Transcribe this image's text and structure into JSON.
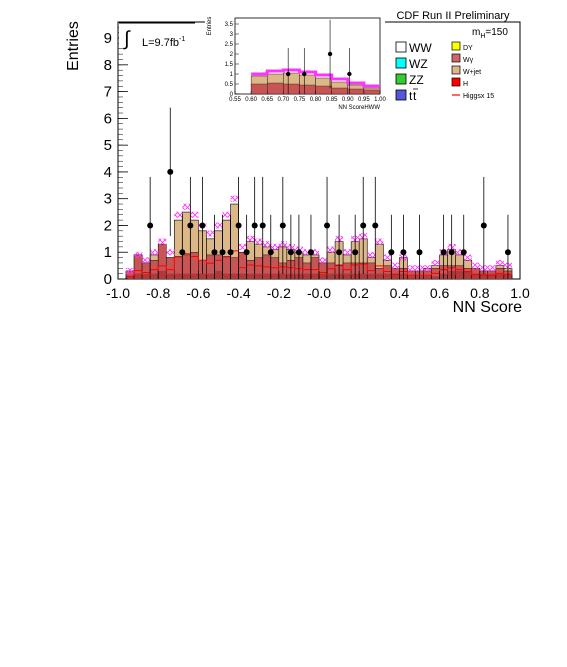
{
  "header": {
    "title": "CDF Run II Preliminary",
    "mass_label_main": "m",
    "mass_label_sub": "H",
    "mass_label_value": "=150",
    "lumi_label": "L=9.7fb",
    "lumi_exp": "-1"
  },
  "legend": {
    "left": [
      {
        "label": "WW",
        "color": "#ffffff"
      },
      {
        "label": "WZ",
        "color": "#00ffff"
      },
      {
        "label": "ZZ",
        "color": "#33cc33"
      },
      {
        "label": "t",
        "label_bar": "t",
        "color": "#5555dd"
      }
    ],
    "right": [
      {
        "label": "DY",
        "color": "#ffff00"
      },
      {
        "label": "Wγ",
        "color": "#d26666"
      },
      {
        "label": "W+jet",
        "color": "#dcb889"
      },
      {
        "label": "H",
        "color": "#ff0000"
      },
      {
        "label": "Higgsx 15",
        "color": "#ff0000"
      }
    ]
  },
  "chart_data": [
    {
      "type": "bar",
      "name": "main",
      "xlabel": "NN Score",
      "ylabel": "Entries",
      "xlim": [
        -1.0,
        1.0
      ],
      "ylim": [
        0,
        9.6
      ],
      "xticks": [
        "-1.0",
        "-0.8",
        "-0.6",
        "-0.4",
        "-0.2",
        "-0.0",
        "0.2",
        "0.4",
        "0.6",
        "0.8",
        "1.0"
      ],
      "yticks": [
        "0",
        "1",
        "2",
        "3",
        "4",
        "5",
        "6",
        "7",
        "8",
        "9"
      ],
      "bin_edges": [
        -0.96,
        -0.92,
        -0.88,
        -0.84,
        -0.8,
        -0.76,
        -0.72,
        -0.68,
        -0.64,
        -0.6,
        -0.56,
        -0.52,
        -0.48,
        -0.44,
        -0.4,
        -0.36,
        -0.32,
        -0.28,
        -0.24,
        -0.2,
        -0.16,
        -0.12,
        -0.08,
        -0.04,
        0.0,
        0.04,
        0.08,
        0.12,
        0.16,
        0.2,
        0.24,
        0.28,
        0.32,
        0.36,
        0.4,
        0.44,
        0.48,
        0.52,
        0.56,
        0.6,
        0.64,
        0.68,
        0.72,
        0.76,
        0.8,
        0.84,
        0.88,
        0.92,
        0.96
      ],
      "background_wjet_total": [
        0.3,
        0.9,
        0.6,
        0.9,
        1.3,
        0.8,
        2.2,
        2.5,
        2.2,
        1.8,
        1.5,
        1.8,
        2.2,
        2.8,
        1.0,
        1.4,
        1.3,
        1.2,
        1.1,
        1.2,
        1.1,
        1.0,
        0.9,
        0.9,
        0.6,
        1.0,
        1.4,
        0.9,
        1.4,
        1.5,
        0.8,
        1.3,
        0.7,
        0.4,
        0.8,
        0.3,
        0.3,
        0.4,
        0.5,
        0.9,
        1.1,
        0.9,
        0.7,
        0.4,
        0.3,
        0.3,
        0.5,
        0.4
      ],
      "background_wgamma": [
        0.3,
        0.9,
        0.6,
        0.7,
        1.3,
        0.8,
        0.8,
        0.9,
        1.0,
        0.7,
        0.9,
        0.9,
        0.8,
        0.8,
        1.0,
        0.7,
        0.8,
        0.9,
        0.8,
        0.6,
        0.7,
        0.8,
        0.6,
        0.8,
        0.6,
        0.6,
        0.5,
        0.6,
        0.6,
        0.6,
        0.6,
        0.4,
        0.5,
        0.4,
        0.4,
        0.3,
        0.3,
        0.3,
        0.4,
        0.5,
        0.5,
        0.5,
        0.4,
        0.4,
        0.3,
        0.3,
        0.4,
        0.3
      ],
      "background_other": [
        0.1,
        0.2,
        0.2,
        0.2,
        0.3,
        0.2,
        0.2,
        0.2,
        0.2,
        0.2,
        0.2,
        0.3,
        0.2,
        0.2,
        0.2,
        0.2,
        0.2,
        0.2,
        0.2,
        0.2,
        0.2,
        0.2,
        0.2,
        0.2,
        0.2,
        0.2,
        0.2,
        0.2,
        0.2,
        0.2,
        0.2,
        0.2,
        0.2,
        0.2,
        0.2,
        0.1,
        0.1,
        0.1,
        0.1,
        0.2,
        0.3,
        0.3,
        0.3,
        0.2,
        0.2,
        0.2,
        0.2,
        0.2
      ],
      "higgs_x15": [
        0.3,
        0.9,
        0.7,
        1.0,
        1.4,
        1.0,
        2.4,
        2.7,
        2.4,
        2.0,
        1.7,
        2.0,
        2.4,
        3.0,
        1.2,
        1.5,
        1.4,
        1.3,
        1.2,
        1.3,
        1.2,
        1.1,
        1.0,
        1.0,
        0.7,
        1.1,
        1.5,
        1.0,
        1.5,
        1.6,
        0.9,
        1.4,
        0.8,
        0.5,
        0.8,
        0.4,
        0.4,
        0.4,
        0.6,
        1.0,
        1.2,
        1.0,
        0.8,
        0.5,
        0.4,
        0.4,
        0.6,
        0.5
      ],
      "data_points": [
        {
          "x": -0.84,
          "y": 2
        },
        {
          "x": -0.74,
          "y": 4
        },
        {
          "x": -0.68,
          "y": 1
        },
        {
          "x": -0.64,
          "y": 2
        },
        {
          "x": -0.58,
          "y": 2
        },
        {
          "x": -0.52,
          "y": 1
        },
        {
          "x": -0.48,
          "y": 1
        },
        {
          "x": -0.44,
          "y": 1
        },
        {
          "x": -0.4,
          "y": 2
        },
        {
          "x": -0.36,
          "y": 1
        },
        {
          "x": -0.32,
          "y": 2
        },
        {
          "x": -0.28,
          "y": 2
        },
        {
          "x": -0.24,
          "y": 1
        },
        {
          "x": -0.18,
          "y": 2
        },
        {
          "x": -0.14,
          "y": 1
        },
        {
          "x": -0.1,
          "y": 1
        },
        {
          "x": -0.04,
          "y": 1
        },
        {
          "x": 0.04,
          "y": 2
        },
        {
          "x": 0.1,
          "y": 1
        },
        {
          "x": 0.18,
          "y": 1
        },
        {
          "x": 0.22,
          "y": 2
        },
        {
          "x": 0.28,
          "y": 2
        },
        {
          "x": 0.36,
          "y": 1
        },
        {
          "x": 0.42,
          "y": 1
        },
        {
          "x": 0.5,
          "y": 1
        },
        {
          "x": 0.62,
          "y": 1
        },
        {
          "x": 0.66,
          "y": 1
        },
        {
          "x": 0.72,
          "y": 1
        },
        {
          "x": 0.82,
          "y": 2
        },
        {
          "x": 0.94,
          "y": 1
        }
      ]
    },
    {
      "type": "bar",
      "name": "inset",
      "xlabel": "NN ScoreHWW",
      "ylabel": "Entries",
      "xlim": [
        0.55,
        1.0
      ],
      "ylim": [
        0,
        3.8
      ],
      "xticks": [
        "0.55",
        "0.60",
        "0.65",
        "0.70",
        "0.75",
        "0.80",
        "0.85",
        "0.90",
        "0.95",
        "1.00"
      ],
      "yticks": [
        "0",
        "0.5",
        "1",
        "1.5",
        "2",
        "2.5",
        "3",
        "3.5"
      ],
      "bin_edges": [
        0.6,
        0.65,
        0.7,
        0.75,
        0.8,
        0.85,
        0.9,
        0.95,
        1.0
      ],
      "background_total": [
        0.9,
        1.0,
        1.05,
        0.95,
        0.8,
        0.6,
        0.45,
        0.3
      ],
      "background_wgamma": [
        0.5,
        0.55,
        0.5,
        0.45,
        0.4,
        0.3,
        0.25,
        0.2
      ],
      "higgs_x15": [
        1.0,
        1.15,
        1.2,
        1.1,
        0.95,
        0.75,
        0.55,
        0.4
      ],
      "data_points": [
        {
          "x": 0.715,
          "y": 1
        },
        {
          "x": 0.765,
          "y": 1
        },
        {
          "x": 0.845,
          "y": 2
        },
        {
          "x": 0.905,
          "y": 1
        }
      ]
    }
  ]
}
